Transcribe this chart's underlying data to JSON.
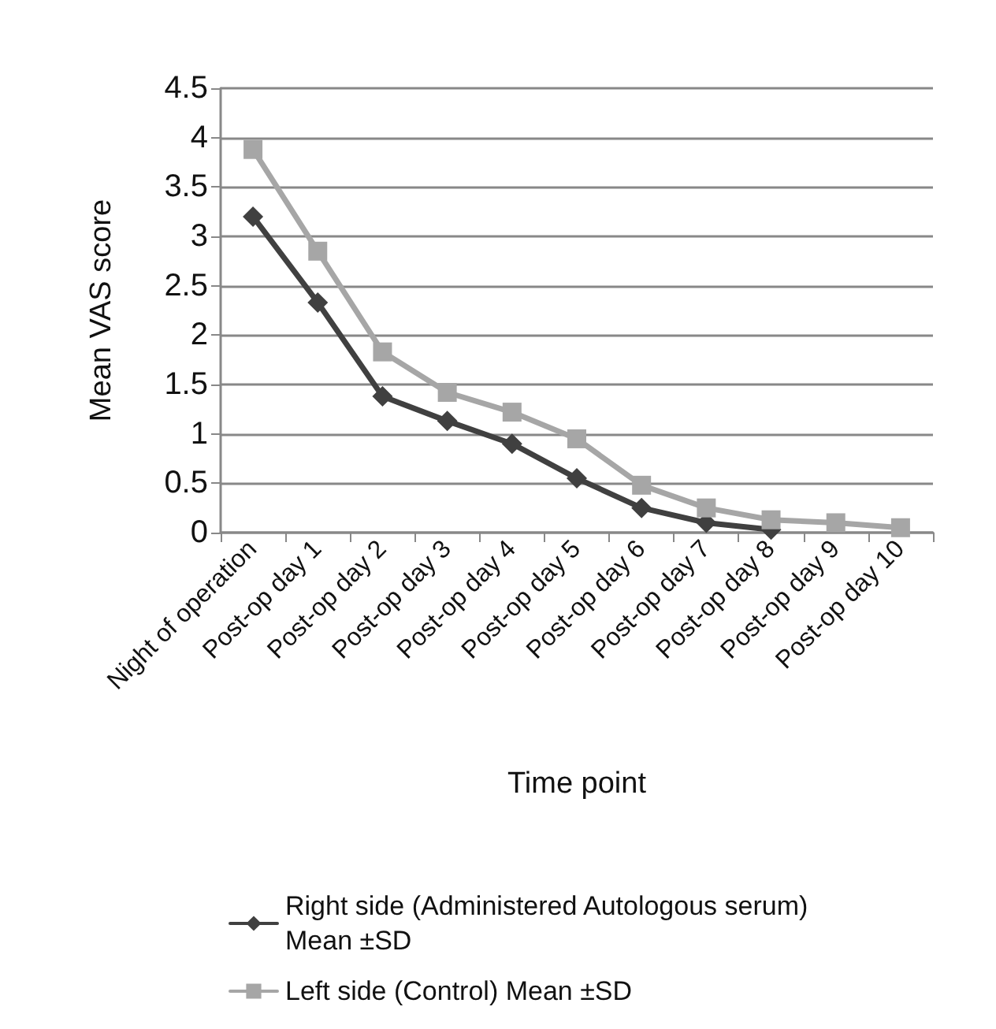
{
  "chart_data": {
    "type": "line",
    "xlabel": "Time point",
    "ylabel": "Mean VAS score",
    "categories": [
      "Night of operation",
      "Post-op day 1",
      "Post-op day 2",
      "Post-op day 3",
      "Post-op day 4",
      "Post-op day 5",
      "Post-op day 6",
      "Post-op day 7",
      "Post-op day 8",
      "Post-op day 9",
      "Post-op day 10"
    ],
    "series": [
      {
        "name": "Right side (Administered Autologous serum) Mean ±SD",
        "color": "#404040",
        "marker": "diamond",
        "values": [
          3.2,
          2.33,
          1.38,
          1.13,
          0.9,
          0.55,
          0.25,
          0.1,
          0.03,
          null,
          null
        ]
      },
      {
        "name": "Left side (Control) Mean ±SD",
        "color": "#a6a6a6",
        "marker": "square",
        "values": [
          3.88,
          2.85,
          1.83,
          1.42,
          1.22,
          0.95,
          0.48,
          0.25,
          0.13,
          0.1,
          0.05
        ]
      }
    ],
    "ylim": [
      0,
      4.5
    ],
    "yticks": [
      0,
      0.5,
      1,
      1.5,
      2,
      2.5,
      3,
      3.5,
      4,
      4.5
    ],
    "grid": "y",
    "legend": "bottom"
  }
}
